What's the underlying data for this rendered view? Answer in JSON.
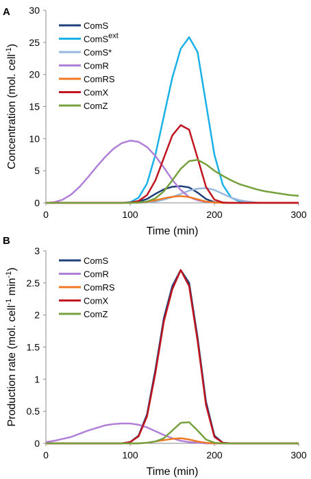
{
  "chart_data": [
    {
      "panel": "A",
      "type": "line",
      "xlabel": "Time (min)",
      "ylabel": {
        "main": "Concentration (mol. cell",
        "sup": "-1",
        "end": ")"
      },
      "xlim": [
        0,
        300
      ],
      "ylim": [
        0,
        30
      ],
      "xticks": [
        0,
        100,
        200,
        300
      ],
      "yticks": [
        0,
        5,
        10,
        15,
        20,
        25,
        30
      ],
      "grid": false,
      "legend_position": "top-left",
      "x": [
        0,
        10,
        20,
        30,
        40,
        50,
        60,
        70,
        80,
        90,
        100,
        110,
        120,
        130,
        140,
        150,
        160,
        170,
        180,
        190,
        200,
        210,
        220,
        230,
        240,
        250,
        260,
        270,
        280,
        290,
        300
      ],
      "series": [
        {
          "name": "ComS",
          "sup": "",
          "color": "#1f3f7a",
          "values": [
            0,
            0,
            0,
            0,
            0,
            0,
            0,
            0,
            0,
            0,
            0.05,
            0.2,
            0.6,
            1.4,
            2.1,
            2.5,
            2.6,
            2.4,
            1.6,
            0.6,
            0.1,
            0,
            0,
            0,
            0,
            0,
            0,
            0,
            0,
            0,
            0
          ]
        },
        {
          "name": "ComS",
          "sup": "ext",
          "color": "#1ab0e8",
          "values": [
            0,
            0,
            0,
            0,
            0,
            0,
            0,
            0,
            0,
            0,
            0.1,
            0.8,
            3.0,
            7.5,
            13.5,
            19.5,
            24.0,
            25.8,
            23.5,
            15.5,
            7.5,
            2.8,
            0.8,
            0.2,
            0.05,
            0,
            0,
            0,
            0,
            0,
            0
          ]
        },
        {
          "name": "ComS*",
          "sup": "",
          "color": "#98b8e0",
          "values": [
            0,
            0,
            0,
            0,
            0,
            0,
            0,
            0,
            0,
            0,
            0,
            0,
            0.05,
            0.2,
            0.5,
            0.9,
            1.4,
            1.9,
            2.2,
            2.3,
            2.0,
            1.4,
            0.8,
            0.4,
            0.2,
            0.05,
            0,
            0,
            0,
            0,
            0
          ]
        },
        {
          "name": "ComR",
          "sup": "",
          "color": "#b07fd8",
          "values": [
            0,
            0.1,
            0.5,
            1.3,
            2.5,
            4.0,
            5.6,
            7.1,
            8.4,
            9.3,
            9.7,
            9.5,
            8.7,
            7.3,
            5.5,
            3.6,
            2.0,
            0.9,
            0.4,
            0.15,
            0.05,
            0,
            0,
            0,
            0,
            0,
            0,
            0,
            0,
            0,
            0
          ]
        },
        {
          "name": "ComRS",
          "sup": "",
          "color": "#f07820",
          "values": [
            0,
            0,
            0,
            0,
            0,
            0,
            0,
            0,
            0,
            0,
            0,
            0.05,
            0.15,
            0.4,
            0.7,
            0.95,
            1.05,
            0.9,
            0.55,
            0.2,
            0.05,
            0,
            0,
            0,
            0,
            0,
            0,
            0,
            0,
            0,
            0
          ]
        },
        {
          "name": "ComX",
          "sup": "",
          "color": "#c0141e",
          "values": [
            0,
            0,
            0,
            0,
            0,
            0,
            0,
            0,
            0,
            0,
            0.05,
            0.3,
            1.2,
            3.5,
            7.0,
            10.5,
            12.1,
            11.4,
            7.0,
            2.5,
            0.5,
            0.05,
            0,
            0,
            0,
            0,
            0,
            0,
            0,
            0,
            0
          ]
        },
        {
          "name": "ComZ",
          "sup": "",
          "color": "#76a03c",
          "values": [
            0,
            0,
            0,
            0,
            0,
            0,
            0,
            0,
            0,
            0,
            0,
            0.05,
            0.2,
            0.7,
            1.8,
            3.5,
            5.3,
            6.5,
            6.7,
            6.0,
            5.0,
            4.2,
            3.5,
            2.9,
            2.5,
            2.1,
            1.8,
            1.6,
            1.4,
            1.2,
            1.1
          ]
        }
      ]
    },
    {
      "panel": "B",
      "type": "line",
      "xlabel": "Time (min)",
      "ylabel": {
        "main": "Production rate (mol. cell",
        "sup": "-1",
        "mid": " min",
        "sup2": "-1",
        "end": ")"
      },
      "xlim": [
        0,
        300
      ],
      "ylim": [
        0,
        3
      ],
      "xticks": [
        0,
        100,
        200,
        300
      ],
      "yticks": [
        0,
        0.5,
        1,
        1.5,
        2,
        2.5,
        3
      ],
      "grid": false,
      "legend_position": "top-left",
      "x": [
        0,
        10,
        20,
        30,
        40,
        50,
        60,
        70,
        80,
        90,
        100,
        110,
        120,
        130,
        140,
        150,
        160,
        170,
        180,
        190,
        200,
        210,
        220,
        230,
        240,
        250,
        260,
        270,
        280,
        290,
        300
      ],
      "series": [
        {
          "name": "ComS",
          "sup": "",
          "color": "#1f3f7a",
          "values": [
            0,
            0,
            0,
            0,
            0,
            0,
            0,
            0,
            0,
            0,
            0.02,
            0.12,
            0.45,
            1.15,
            1.95,
            2.45,
            2.7,
            2.5,
            1.65,
            0.65,
            0.12,
            0.01,
            0,
            0,
            0,
            0,
            0,
            0,
            0,
            0,
            0
          ]
        },
        {
          "name": "ComR",
          "sup": "",
          "color": "#b07fd8",
          "values": [
            0.02,
            0.04,
            0.07,
            0.1,
            0.15,
            0.2,
            0.24,
            0.28,
            0.3,
            0.31,
            0.31,
            0.29,
            0.25,
            0.19,
            0.13,
            0.08,
            0.04,
            0.02,
            0.01,
            0,
            0,
            0,
            0,
            0,
            0,
            0,
            0,
            0,
            0,
            0,
            0
          ]
        },
        {
          "name": "ComRS",
          "sup": "",
          "color": "#f07820",
          "values": [
            0,
            0,
            0,
            0,
            0,
            0,
            0,
            0,
            0,
            0,
            0,
            0,
            0.01,
            0.03,
            0.05,
            0.07,
            0.08,
            0.06,
            0.03,
            0.01,
            0,
            0,
            0,
            0,
            0,
            0,
            0,
            0,
            0,
            0,
            0
          ]
        },
        {
          "name": "ComX",
          "sup": "",
          "color": "#c0141e",
          "values": [
            0,
            0,
            0,
            0,
            0,
            0,
            0,
            0,
            0,
            0,
            0.02,
            0.11,
            0.42,
            1.1,
            1.9,
            2.4,
            2.7,
            2.45,
            1.6,
            0.6,
            0.1,
            0.01,
            0,
            0,
            0,
            0,
            0,
            0,
            0,
            0,
            0
          ]
        },
        {
          "name": "ComZ",
          "sup": "",
          "color": "#76a03c",
          "values": [
            0,
            0,
            0,
            0,
            0,
            0,
            0,
            0,
            0,
            0,
            0,
            0,
            0.01,
            0.03,
            0.08,
            0.2,
            0.32,
            0.33,
            0.2,
            0.06,
            0.01,
            0,
            0,
            0,
            0,
            0,
            0,
            0,
            0,
            0,
            0
          ]
        }
      ]
    }
  ]
}
